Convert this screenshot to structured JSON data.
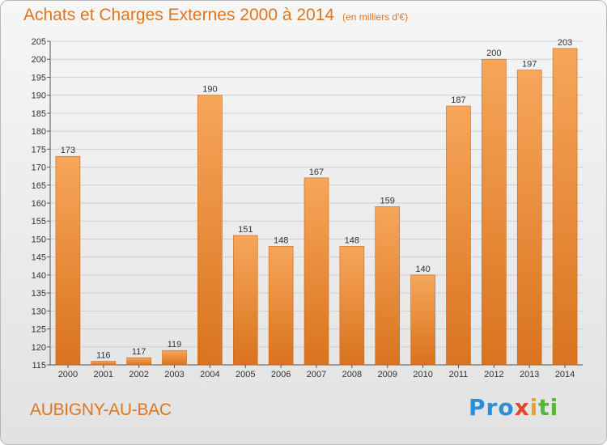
{
  "header": {
    "title": "Achats et Charges Externes 2000 à 2014",
    "unit": "(en milliers d'€)"
  },
  "footer": {
    "commune": "AUBIGNY-AU-BAC",
    "logo": [
      "Pro",
      "x",
      "i",
      "ti"
    ]
  },
  "colors": {
    "bar_light": "#f7a65a",
    "bar_dark": "#d9731e",
    "title": "#e0761c",
    "grid": "#cfcfcf"
  },
  "chart_data": {
    "type": "bar",
    "title": "Achats et Charges Externes 2000 à 2014",
    "subtitle": "(en milliers d'€)",
    "xlabel": "",
    "ylabel": "",
    "categories": [
      "2000",
      "2001",
      "2002",
      "2003",
      "2004",
      "2005",
      "2006",
      "2007",
      "2008",
      "2009",
      "2010",
      "2011",
      "2012",
      "2013",
      "2014"
    ],
    "values": [
      173,
      116,
      117,
      119,
      190,
      151,
      148,
      167,
      148,
      159,
      140,
      187,
      200,
      197,
      203
    ],
    "ylim": [
      115,
      205
    ],
    "yticks": [
      115,
      120,
      125,
      130,
      135,
      140,
      145,
      150,
      155,
      160,
      165,
      170,
      175,
      180,
      185,
      190,
      195,
      200,
      205
    ],
    "grid": true,
    "legend": "none"
  }
}
